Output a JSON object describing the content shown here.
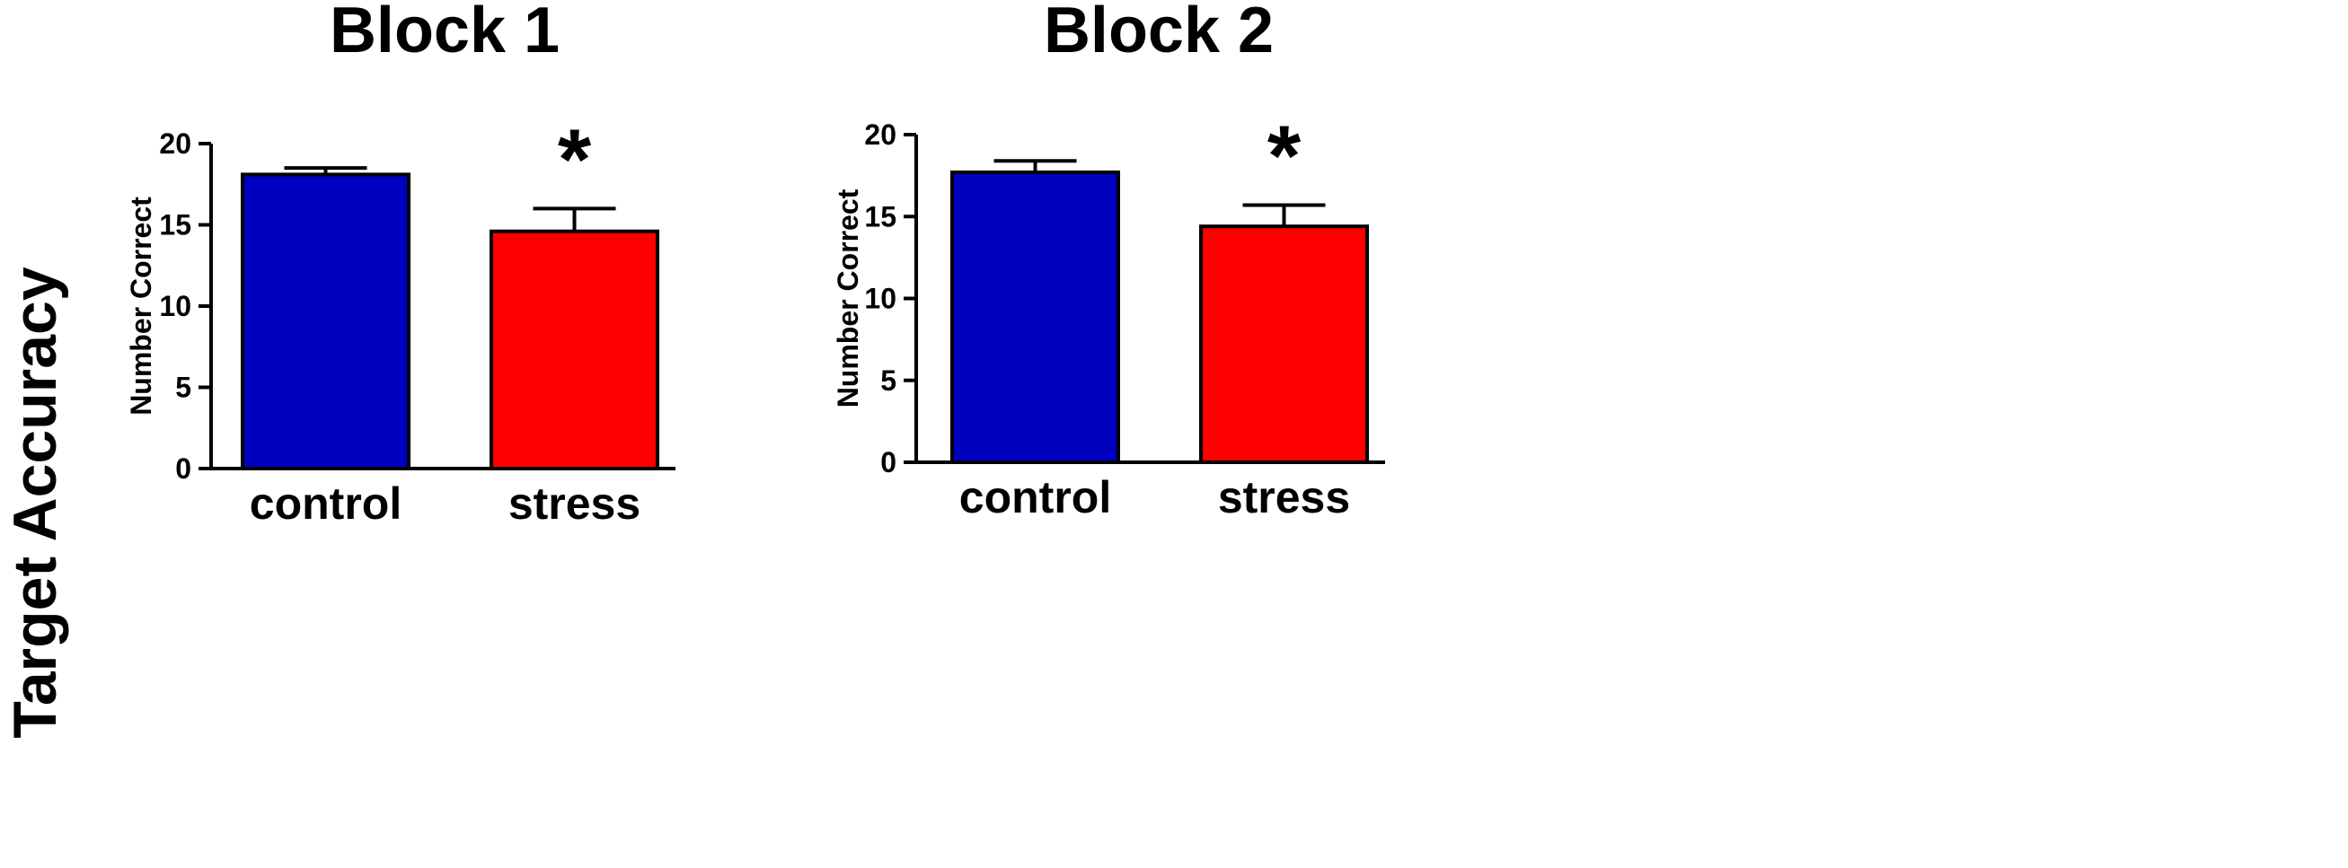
{
  "figure": {
    "row_label": "Target Accuracy"
  },
  "colors": {
    "control": "#0000c0",
    "stress": "#ff0000",
    "axis": "#000000"
  },
  "chart_data": [
    {
      "type": "bar",
      "title": "Block 1",
      "ylabel": "Number Correct",
      "xlabel": "",
      "categories": [
        "control",
        "stress"
      ],
      "values": [
        18.1,
        14.6
      ],
      "error": [
        0.4,
        1.4
      ],
      "ylim": [
        0,
        20
      ],
      "yticks": [
        "0",
        "5",
        "10",
        "15",
        "20"
      ],
      "significance": [
        "",
        "*"
      ],
      "grid": false
    },
    {
      "type": "bar",
      "title": "Block 2",
      "ylabel": "Number Correct",
      "xlabel": "",
      "categories": [
        "control",
        "stress"
      ],
      "values": [
        17.7,
        14.4
      ],
      "error": [
        0.7,
        1.3
      ],
      "ylim": [
        0,
        20
      ],
      "yticks": [
        "0",
        "5",
        "10",
        "15",
        "20"
      ],
      "significance": [
        "",
        "*"
      ],
      "grid": false
    }
  ]
}
